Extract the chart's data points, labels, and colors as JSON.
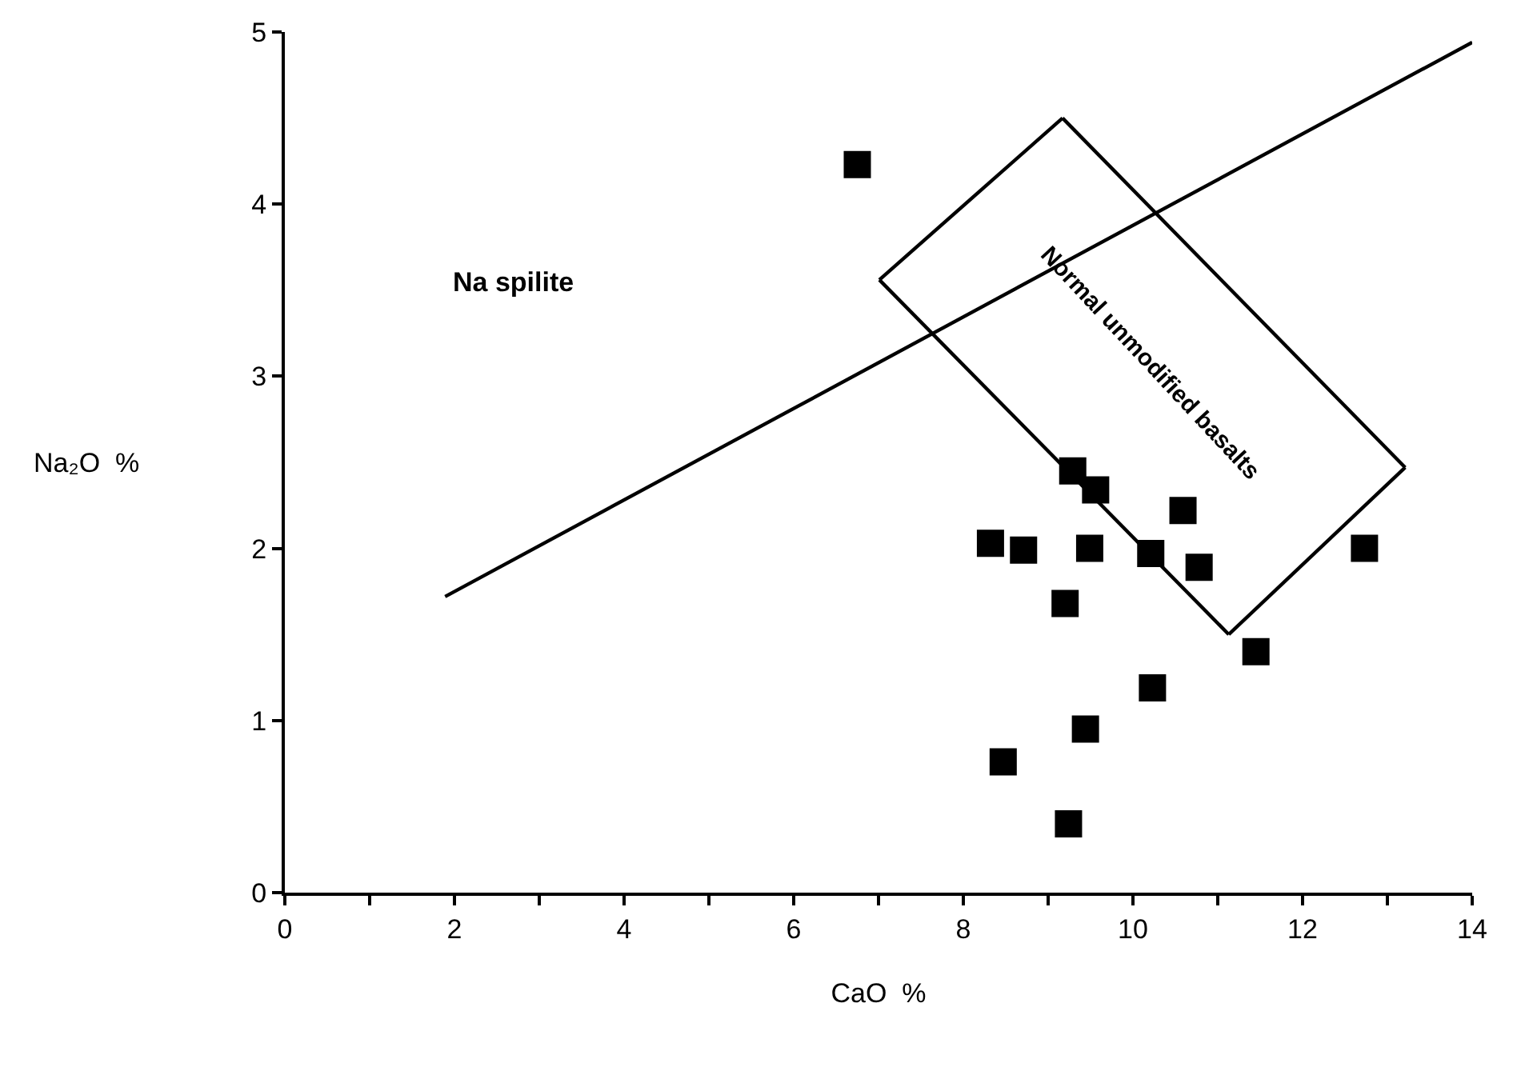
{
  "chart_data": {
    "type": "scatter",
    "xlabel": "CaO  %",
    "ylabel": "Na₂O  %",
    "xlim": [
      0,
      14
    ],
    "ylim": [
      0,
      5
    ],
    "xticks": [
      0,
      {
        "value": 1,
        "label": null
      },
      2,
      {
        "value": 3,
        "label": null
      },
      4,
      {
        "value": 5,
        "label": null
      },
      6,
      {
        "value": 7,
        "label": null
      },
      8,
      {
        "value": 9,
        "label": null
      },
      10,
      {
        "value": 11,
        "label": null
      },
      12,
      {
        "value": 13,
        "label": null
      },
      14
    ],
    "yticks": [
      0,
      1,
      2,
      3,
      4,
      5
    ],
    "grid": false,
    "series": [
      {
        "marker": "square",
        "color": "#000000",
        "x": [
          6.75,
          9.29,
          9.56,
          10.59,
          8.32,
          8.71,
          9.49,
          10.21,
          10.78,
          12.73,
          9.2,
          11.45,
          10.23,
          9.44,
          8.47,
          9.24
        ],
        "values": [
          4.23,
          2.45,
          2.34,
          2.22,
          2.03,
          1.99,
          2.0,
          1.97,
          1.89,
          2.0,
          1.68,
          1.4,
          1.19,
          0.95,
          0.76,
          0.4
        ]
      },
      {
        "type": "line",
        "marker": "none",
        "line_style": "solid",
        "color": "#000000",
        "x": [
          1.89,
          14
        ],
        "values": [
          1.72,
          4.94
        ]
      },
      {
        "type": "line",
        "marker": "none",
        "line_style": "solid",
        "color": "#000000",
        "x": [
          7.01,
          9.17
        ],
        "values": [
          3.56,
          4.5
        ]
      },
      {
        "type": "line",
        "marker": "none",
        "line_style": "solid",
        "color": "#000000",
        "x": [
          9.17,
          13.21
        ],
        "values": [
          4.5,
          2.47
        ]
      },
      {
        "type": "line",
        "marker": "none",
        "line_style": "solid",
        "color": "#000000",
        "x": [
          11.13,
          13.21
        ],
        "values": [
          1.5,
          2.47
        ]
      },
      {
        "type": "line",
        "marker": "none",
        "line_style": "solid",
        "color": "#000000",
        "x": [
          7.01,
          11.13
        ],
        "values": [
          3.56,
          1.5
        ]
      }
    ],
    "annotations": [
      "Na spilite",
      "Normal unmodified basalts"
    ]
  }
}
